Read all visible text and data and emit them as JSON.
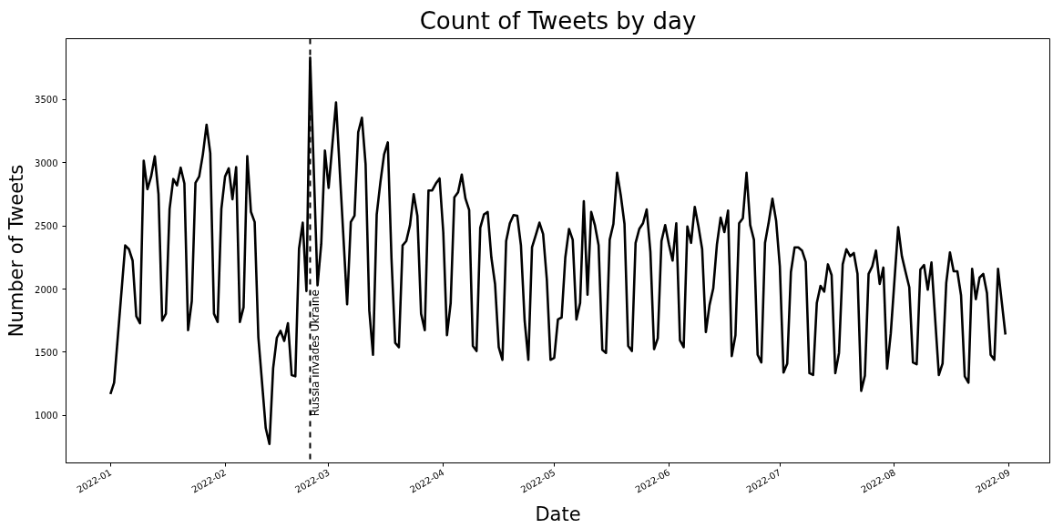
{
  "chart_data": {
    "type": "line",
    "title": "Count of Tweets by day",
    "xlabel": "Date",
    "ylabel": "Number of Tweets",
    "x": [
      "2022-01-01",
      "2022-01-02",
      "2022-01-05",
      "2022-01-06",
      "2022-01-07",
      "2022-01-08",
      "2022-01-09",
      "2022-01-10",
      "2022-01-11",
      "2022-01-12",
      "2022-01-13",
      "2022-01-14",
      "2022-01-15",
      "2022-01-16",
      "2022-01-17",
      "2022-01-18",
      "2022-01-19",
      "2022-01-20",
      "2022-01-21",
      "2022-01-22",
      "2022-01-23",
      "2022-01-24",
      "2022-01-25",
      "2022-01-26",
      "2022-01-27",
      "2022-01-28",
      "2022-01-29",
      "2022-01-30",
      "2022-01-31",
      "2022-02-01",
      "2022-02-02",
      "2022-02-03",
      "2022-02-04",
      "2022-02-05",
      "2022-02-06",
      "2022-02-07",
      "2022-02-08",
      "2022-02-09",
      "2022-02-10",
      "2022-02-12",
      "2022-02-13",
      "2022-02-14",
      "2022-02-15",
      "2022-02-16",
      "2022-02-17",
      "2022-02-18",
      "2022-02-19",
      "2022-02-20",
      "2022-02-21",
      "2022-02-22",
      "2022-02-23",
      "2022-02-24",
      "2022-02-26",
      "2022-02-27",
      "2022-02-28",
      "2022-03-01",
      "2022-03-03",
      "2022-03-06",
      "2022-03-07",
      "2022-03-08",
      "2022-03-09",
      "2022-03-10",
      "2022-03-11",
      "2022-03-12",
      "2022-03-13",
      "2022-03-14",
      "2022-03-15",
      "2022-03-16",
      "2022-03-17",
      "2022-03-18",
      "2022-03-19",
      "2022-03-20",
      "2022-03-21",
      "2022-03-22",
      "2022-03-23",
      "2022-03-24",
      "2022-03-25",
      "2022-03-26",
      "2022-03-27",
      "2022-03-28",
      "2022-03-29",
      "2022-03-30",
      "2022-03-31",
      "2022-04-01",
      "2022-04-02",
      "2022-04-03",
      "2022-04-04",
      "2022-04-05",
      "2022-04-06",
      "2022-04-07",
      "2022-04-08",
      "2022-04-09",
      "2022-04-10",
      "2022-04-11",
      "2022-04-12",
      "2022-04-13",
      "2022-04-14",
      "2022-04-15",
      "2022-04-16",
      "2022-04-17",
      "2022-04-18",
      "2022-04-19",
      "2022-04-20",
      "2022-04-21",
      "2022-04-22",
      "2022-04-23",
      "2022-04-24",
      "2022-04-25",
      "2022-04-26",
      "2022-04-27",
      "2022-04-28",
      "2022-04-29",
      "2022-04-30",
      "2022-05-01",
      "2022-05-02",
      "2022-05-03",
      "2022-05-04",
      "2022-05-05",
      "2022-05-06",
      "2022-05-07",
      "2022-05-08",
      "2022-05-09",
      "2022-05-10",
      "2022-05-11",
      "2022-05-12",
      "2022-05-13",
      "2022-05-14",
      "2022-05-15",
      "2022-05-16",
      "2022-05-17",
      "2022-05-18",
      "2022-05-19",
      "2022-05-20",
      "2022-05-21",
      "2022-05-22",
      "2022-05-23",
      "2022-05-24",
      "2022-05-25",
      "2022-05-26",
      "2022-05-27",
      "2022-05-28",
      "2022-05-29",
      "2022-05-30",
      "2022-05-31",
      "2022-06-01",
      "2022-06-02",
      "2022-06-03",
      "2022-06-04",
      "2022-06-05",
      "2022-06-06",
      "2022-06-07",
      "2022-06-08",
      "2022-06-09",
      "2022-06-10",
      "2022-06-11",
      "2022-06-12",
      "2022-06-13",
      "2022-06-14",
      "2022-06-15",
      "2022-06-16",
      "2022-06-17",
      "2022-06-18",
      "2022-06-19",
      "2022-06-20",
      "2022-06-21",
      "2022-06-22",
      "2022-06-23",
      "2022-06-24",
      "2022-06-25",
      "2022-06-26",
      "2022-06-27",
      "2022-06-28",
      "2022-06-29",
      "2022-06-30",
      "2022-07-01",
      "2022-07-02",
      "2022-07-03",
      "2022-07-04",
      "2022-07-05",
      "2022-07-06",
      "2022-07-07",
      "2022-07-08",
      "2022-07-09",
      "2022-07-10",
      "2022-07-11",
      "2022-07-12",
      "2022-07-13",
      "2022-07-14",
      "2022-07-15",
      "2022-07-16",
      "2022-07-17",
      "2022-07-18",
      "2022-07-19",
      "2022-07-20",
      "2022-07-21",
      "2022-07-22",
      "2022-07-23",
      "2022-07-24",
      "2022-07-25",
      "2022-07-26",
      "2022-07-27",
      "2022-07-28",
      "2022-07-29",
      "2022-07-30",
      "2022-07-31",
      "2022-08-02",
      "2022-08-03",
      "2022-08-04",
      "2022-08-05",
      "2022-08-06",
      "2022-08-07",
      "2022-08-08",
      "2022-08-09",
      "2022-08-10",
      "2022-08-11",
      "2022-08-13",
      "2022-08-14",
      "2022-08-15",
      "2022-08-16",
      "2022-08-17",
      "2022-08-18",
      "2022-08-19",
      "2022-08-20",
      "2022-08-21",
      "2022-08-22",
      "2022-08-23",
      "2022-08-24",
      "2022-08-25",
      "2022-08-26",
      "2022-08-27",
      "2022-08-28",
      "2022-08-29",
      "2022-08-30",
      "2022-08-31"
    ],
    "series": [
      {
        "color": "#000000",
        "values": [
          1170,
          1260,
          2345,
          2315,
          2225,
          1785,
          1730,
          3015,
          2790,
          2890,
          3050,
          2750,
          1750,
          1805,
          2635,
          2870,
          2820,
          2960,
          2835,
          1675,
          1905,
          2840,
          2890,
          3065,
          3300,
          3075,
          1805,
          1740,
          2635,
          2890,
          2955,
          2710,
          2965,
          1740,
          1855,
          3050,
          2610,
          2530,
          1620,
          900,
          775,
          1375,
          1615,
          1670,
          1590,
          1730,
          1320,
          1310,
          2320,
          2525,
          1985,
          3830,
          2030,
          2355,
          3095,
          2800,
          3475,
          1880,
          2530,
          2580,
          3240,
          3355,
          2985,
          1830,
          1480,
          2590,
          2845,
          3065,
          3160,
          2240,
          1575,
          1540,
          2345,
          2380,
          2505,
          2750,
          2580,
          1805,
          1675,
          2780,
          2780,
          2835,
          2875,
          2450,
          1635,
          1890,
          2725,
          2765,
          2905,
          2715,
          2625,
          1550,
          1510,
          2485,
          2590,
          2610,
          2250,
          2040,
          1540,
          1440,
          2380,
          2520,
          2585,
          2580,
          2345,
          1750,
          1440,
          2330,
          2425,
          2525,
          2435,
          2075,
          1440,
          1455,
          1760,
          1775,
          2250,
          2475,
          2390,
          1760,
          1890,
          2695,
          1955,
          2610,
          2505,
          2345,
          1520,
          1495,
          2390,
          2515,
          2920,
          2740,
          2515,
          1550,
          1510,
          2365,
          2475,
          2520,
          2630,
          2295,
          1525,
          1610,
          2380,
          2505,
          2355,
          2225,
          2520,
          1595,
          1540,
          2495,
          2365,
          2650,
          2495,
          2315,
          1660,
          1875,
          2005,
          2355,
          2565,
          2450,
          2620,
          1470,
          1635,
          2520,
          2560,
          2920,
          2505,
          2390,
          1480,
          1420,
          2365,
          2530,
          2715,
          2540,
          2180,
          1340,
          1410,
          2135,
          2330,
          2330,
          2305,
          2215,
          1335,
          1320,
          1890,
          2025,
          1980,
          2195,
          2110,
          1335,
          1495,
          2195,
          2315,
          2260,
          2285,
          2120,
          1195,
          1315,
          2120,
          2180,
          2305,
          2040,
          2170,
          1370,
          1650,
          2490,
          2260,
          2135,
          2015,
          1420,
          1405,
          2155,
          2190,
          1995,
          2210,
          1320,
          1410,
          2050,
          2290,
          2140,
          2140,
          1950,
          1310,
          1260,
          2160,
          1920,
          2090,
          2120,
          1970,
          1480,
          1440,
          2160,
          1900,
          1640
        ]
      }
    ],
    "xlim": [
      "2021-12-20",
      "2022-09-12"
    ],
    "ylim": [
      625,
      3980
    ],
    "xticks": [
      "2022-01",
      "2022-02",
      "2022-03",
      "2022-04",
      "2022-05",
      "2022-06",
      "2022-07",
      "2022-08",
      "2022-09"
    ],
    "yticks": [
      1000,
      1500,
      2000,
      2500,
      3000,
      3500
    ],
    "ref_lines": [
      {
        "axis": "x",
        "value": "2022-02-24",
        "label": "Russia invades Ukraine",
        "color": "#000000",
        "line_style": "dashed"
      }
    ],
    "grid": false,
    "marker": "none",
    "line_style": "solid"
  }
}
